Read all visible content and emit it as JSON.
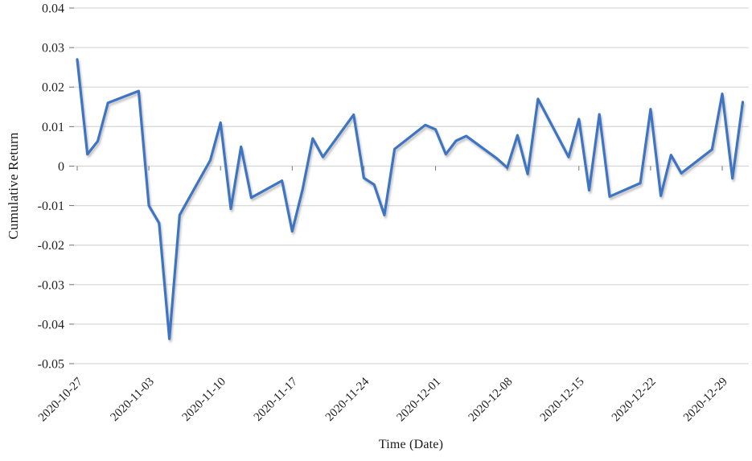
{
  "chart_data": {
    "type": "line",
    "title": "",
    "xlabel": "Time (Date)",
    "ylabel": "Cumulative Return",
    "x": [
      "2020-10-27",
      "2020-10-28",
      "2020-10-29",
      "2020-10-30",
      "2020-11-02",
      "2020-11-03",
      "2020-11-04",
      "2020-11-05",
      "2020-11-06",
      "2020-11-09",
      "2020-11-10",
      "2020-11-11",
      "2020-11-12",
      "2020-11-13",
      "2020-11-16",
      "2020-11-17",
      "2020-11-18",
      "2020-11-19",
      "2020-11-20",
      "2020-11-23",
      "2020-11-24",
      "2020-11-25",
      "2020-11-26",
      "2020-11-27",
      "2020-11-30",
      "2020-12-01",
      "2020-12-02",
      "2020-12-03",
      "2020-12-04",
      "2020-12-07",
      "2020-12-08",
      "2020-12-09",
      "2020-12-10",
      "2020-12-11",
      "2020-12-14",
      "2020-12-15",
      "2020-12-16",
      "2020-12-17",
      "2020-12-18",
      "2020-12-21",
      "2020-12-22",
      "2020-12-23",
      "2020-12-24",
      "2020-12-25",
      "2020-12-28",
      "2020-12-29",
      "2020-12-30",
      "2020-12-31"
    ],
    "y": [
      0.027,
      0.003,
      0.0063,
      0.016,
      0.019,
      -0.01,
      -0.0144,
      -0.0437,
      -0.0124,
      0.0015,
      0.011,
      -0.0108,
      0.0049,
      -0.008,
      -0.0037,
      -0.0165,
      -0.006,
      0.007,
      0.0023,
      0.013,
      -0.003,
      -0.0047,
      -0.0124,
      0.0043,
      0.0104,
      0.0093,
      0.003,
      0.0064,
      0.0076,
      0.0019,
      -0.0004,
      0.0078,
      -0.002,
      0.017,
      0.0023,
      0.0119,
      -0.0061,
      0.0131,
      -0.0077,
      -0.0043,
      0.0144,
      -0.0075,
      0.0028,
      -0.0018,
      0.0042,
      0.0183,
      -0.0031,
      0.0162
    ],
    "ylim": [
      -0.05,
      0.04
    ],
    "ytick_step": 0.01,
    "ytick_labels": [
      "0.04",
      "0.03",
      "0.02",
      "0.01",
      "0",
      "-0.01",
      "-0.02",
      "-0.03",
      "-0.04",
      "-0.05"
    ],
    "xtick_labels": [
      "2020-10-27",
      "2020-11-03",
      "2020-11-10",
      "2020-11-17",
      "2020-11-24",
      "2020-12-01",
      "2020-12-08",
      "2020-12-15",
      "2020-12-22",
      "2020-12-29"
    ],
    "grid": true,
    "legend": "none",
    "line_color": "#3d74c4",
    "gridline_color": "#d9d9d9",
    "tick_color": "#737373",
    "label_color": "#1f1f1f"
  }
}
